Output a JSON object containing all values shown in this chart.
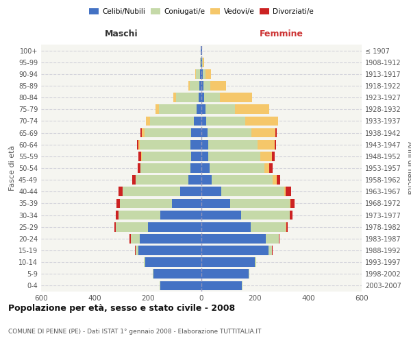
{
  "age_groups": [
    "0-4",
    "5-9",
    "10-14",
    "15-19",
    "20-24",
    "25-29",
    "30-34",
    "35-39",
    "40-44",
    "45-49",
    "50-54",
    "55-59",
    "60-64",
    "65-69",
    "70-74",
    "75-79",
    "80-84",
    "85-89",
    "90-94",
    "95-99",
    "100+"
  ],
  "birth_years": [
    "2003-2007",
    "1998-2002",
    "1993-1997",
    "1988-1992",
    "1983-1987",
    "1978-1982",
    "1973-1977",
    "1968-1972",
    "1963-1967",
    "1958-1962",
    "1953-1957",
    "1948-1952",
    "1943-1947",
    "1938-1942",
    "1933-1937",
    "1928-1932",
    "1923-1927",
    "1918-1922",
    "1913-1917",
    "1908-1912",
    "≤ 1907"
  ],
  "males_celibi": [
    155,
    180,
    210,
    235,
    230,
    200,
    155,
    110,
    80,
    50,
    42,
    38,
    40,
    38,
    28,
    18,
    10,
    8,
    5,
    3,
    2
  ],
  "males_coniugati": [
    1,
    2,
    5,
    12,
    35,
    120,
    155,
    195,
    215,
    195,
    185,
    185,
    190,
    175,
    165,
    140,
    85,
    35,
    15,
    2,
    0
  ],
  "males_vedovi": [
    0,
    0,
    0,
    0,
    0,
    1,
    1,
    1,
    1,
    1,
    2,
    3,
    5,
    10,
    15,
    15,
    10,
    5,
    2,
    0,
    0
  ],
  "males_divorziati": [
    0,
    0,
    0,
    1,
    3,
    5,
    10,
    12,
    15,
    12,
    10,
    10,
    5,
    5,
    0,
    0,
    0,
    0,
    0,
    0,
    0
  ],
  "females_nubili": [
    152,
    178,
    200,
    250,
    240,
    185,
    148,
    108,
    75,
    38,
    30,
    25,
    25,
    22,
    18,
    15,
    10,
    8,
    5,
    3,
    2
  ],
  "females_coniugate": [
    1,
    2,
    5,
    15,
    50,
    130,
    182,
    222,
    235,
    228,
    205,
    195,
    185,
    165,
    145,
    110,
    60,
    25,
    10,
    2,
    0
  ],
  "females_vedove": [
    0,
    0,
    0,
    0,
    1,
    2,
    2,
    3,
    5,
    15,
    20,
    45,
    65,
    90,
    125,
    130,
    120,
    60,
    20,
    5,
    0
  ],
  "females_divorziate": [
    0,
    0,
    0,
    1,
    2,
    5,
    8,
    15,
    20,
    15,
    12,
    10,
    5,
    5,
    0,
    0,
    0,
    0,
    0,
    0,
    0
  ],
  "color_celibi": "#4472c4",
  "color_coniugati": "#c5d9a8",
  "color_vedovi": "#f5c76a",
  "color_divorziati": "#cc2222",
  "xlim": 600,
  "title": "Popolazione per età, sesso e stato civile - 2008",
  "subtitle": "COMUNE DI PENNE (PE) - Dati ISTAT 1° gennaio 2008 - Elaborazione TUTTITALIA.IT",
  "ylabel_left": "Fasce di età",
  "ylabel_right": "Anni di nascita",
  "label_maschi": "Maschi",
  "label_femmine": "Femmine",
  "legend_labels": [
    "Celibi/Nubili",
    "Coniugati/e",
    "Vedovi/e",
    "Divorziati/e"
  ],
  "xtick_labels": [
    "600",
    "400",
    "200",
    "0",
    "200",
    "400",
    "600"
  ],
  "xtick_vals": [
    -600,
    -400,
    -200,
    0,
    200,
    400,
    600
  ],
  "bg_color": "#f5f5f0"
}
